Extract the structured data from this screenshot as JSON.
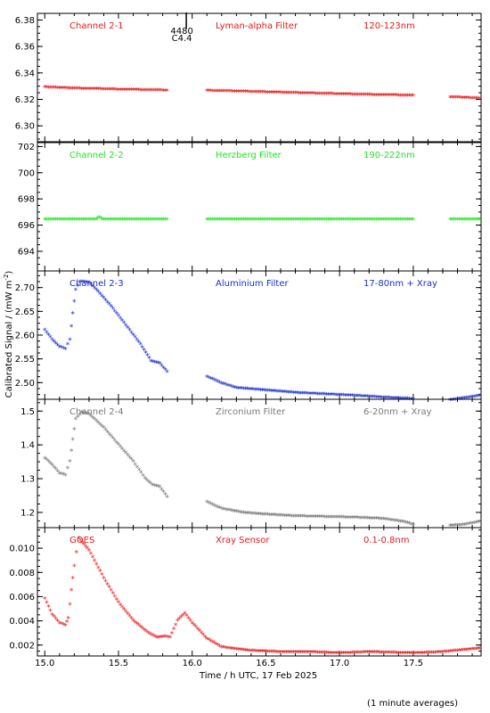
{
  "figure": {
    "ylabel": "Calibrated Signal / (mW m",
    "ylabel_sup": "-2",
    "ylabel_end": ")",
    "xlabel": "Time / h UTC, 17 Feb 2025",
    "footnote": "(1 minute averages)",
    "event_label_top": "4480",
    "event_label_bottom": "C4.4"
  },
  "chart_data": [
    {
      "type": "scatter",
      "channel": "Channel 2-1",
      "filter": "Lyman-alpha Filter",
      "band": "120-123nm",
      "color": "#e41a1c",
      "yticks": [
        "6.30",
        "6.32",
        "6.34",
        "6.36",
        "6.38"
      ],
      "ylim": [
        6.288,
        6.385
      ],
      "series": [
        [
          15.0,
          6.329
        ],
        [
          15.1,
          6.3285
        ],
        [
          15.2,
          6.328
        ],
        [
          15.3,
          6.3278
        ],
        [
          15.4,
          6.3275
        ],
        [
          15.5,
          6.3272
        ],
        [
          15.6,
          6.327
        ],
        [
          15.7,
          6.3268
        ],
        [
          15.83,
          6.3265
        ],
        null,
        [
          16.1,
          6.3263
        ],
        [
          16.3,
          6.3258
        ],
        [
          16.5,
          6.3252
        ],
        [
          16.7,
          6.3246
        ],
        [
          16.9,
          6.324
        ],
        [
          17.1,
          6.3235
        ],
        [
          17.3,
          6.323
        ],
        [
          17.5,
          6.3227
        ],
        null,
        [
          17.75,
          6.3215
        ],
        [
          17.95,
          6.3205
        ]
      ]
    },
    {
      "type": "scatter",
      "channel": "Channel 2-2",
      "filter": "Herzberg Filter",
      "band": "190-222nm",
      "color": "#22e622",
      "yticks": [
        "694",
        "696",
        "698",
        "700",
        "702"
      ],
      "ylim": [
        692.5,
        702.3
      ],
      "series": [
        [
          15.0,
          696.4
        ],
        [
          15.35,
          696.4
        ],
        [
          15.37,
          696.6
        ],
        [
          15.39,
          696.4
        ],
        [
          15.6,
          696.4
        ],
        [
          15.83,
          696.4
        ],
        null,
        [
          16.1,
          696.4
        ],
        [
          16.5,
          696.4
        ],
        [
          17.0,
          696.4
        ],
        [
          17.5,
          696.4
        ],
        null,
        [
          17.75,
          696.4
        ],
        [
          17.95,
          696.4
        ]
      ]
    },
    {
      "type": "scatter",
      "channel": "Channel 2-3",
      "filter": "Aluminium Filter",
      "band": "17-80nm + Xray",
      "color": "#1a30c8",
      "yticks": [
        "2.50",
        "2.55",
        "2.60",
        "2.65",
        "2.70"
      ],
      "ylim": [
        2.465,
        2.735
      ],
      "series": [
        [
          15.0,
          2.61
        ],
        [
          15.05,
          2.59
        ],
        [
          15.1,
          2.575
        ],
        [
          15.14,
          2.57
        ],
        [
          15.17,
          2.59
        ],
        [
          15.19,
          2.645
        ],
        [
          15.21,
          2.695
        ],
        [
          15.24,
          2.712
        ],
        [
          15.3,
          2.71
        ],
        [
          15.35,
          2.695
        ],
        [
          15.45,
          2.66
        ],
        [
          15.55,
          2.62
        ],
        [
          15.65,
          2.58
        ],
        [
          15.72,
          2.545
        ],
        [
          15.78,
          2.54
        ],
        [
          15.83,
          2.522
        ],
        null,
        [
          16.1,
          2.512
        ],
        [
          16.2,
          2.498
        ],
        [
          16.3,
          2.488
        ],
        [
          16.5,
          2.483
        ],
        [
          16.7,
          2.478
        ],
        [
          16.9,
          2.475
        ],
        [
          17.1,
          2.472
        ],
        [
          17.3,
          2.468
        ],
        [
          17.5,
          2.465
        ],
        null,
        [
          17.75,
          2.463
        ],
        [
          17.85,
          2.467
        ],
        [
          17.95,
          2.472
        ]
      ]
    },
    {
      "type": "scatter",
      "channel": "Channel 2-4",
      "filter": "Zirconium Filter",
      "band": "6-20nm + Xray",
      "color": "#7a7a7a",
      "yticks": [
        "1.2",
        "1.3",
        "1.4",
        "1.5"
      ],
      "ylim": [
        1.155,
        1.535
      ],
      "series": [
        [
          15.0,
          1.36
        ],
        [
          15.05,
          1.34
        ],
        [
          15.1,
          1.315
        ],
        [
          15.14,
          1.31
        ],
        [
          15.17,
          1.35
        ],
        [
          15.19,
          1.415
        ],
        [
          15.21,
          1.475
        ],
        [
          15.25,
          1.495
        ],
        [
          15.3,
          1.49
        ],
        [
          15.4,
          1.45
        ],
        [
          15.5,
          1.4
        ],
        [
          15.6,
          1.35
        ],
        [
          15.68,
          1.3
        ],
        [
          15.73,
          1.28
        ],
        [
          15.78,
          1.275
        ],
        [
          15.83,
          1.245
        ],
        null,
        [
          16.1,
          1.23
        ],
        [
          16.2,
          1.21
        ],
        [
          16.35,
          1.198
        ],
        [
          16.5,
          1.193
        ],
        [
          16.7,
          1.188
        ],
        [
          16.9,
          1.186
        ],
        [
          17.1,
          1.184
        ],
        [
          17.3,
          1.18
        ],
        [
          17.45,
          1.17
        ],
        [
          17.5,
          1.163
        ],
        null,
        [
          17.75,
          1.16
        ],
        [
          17.85,
          1.163
        ],
        [
          17.95,
          1.172
        ]
      ]
    },
    {
      "type": "scatter",
      "channel": "GOES",
      "filter": "Xray Sensor",
      "band": "0.1-0.8nm",
      "color": "#e41a1c",
      "yticks": [
        "0.002",
        "0.004",
        "0.006",
        "0.008",
        "0.010"
      ],
      "ylim": [
        0.0011,
        0.0117
      ],
      "series": [
        [
          15.0,
          0.0058
        ],
        [
          15.05,
          0.0045
        ],
        [
          15.1,
          0.0038
        ],
        [
          15.14,
          0.0036
        ],
        [
          15.16,
          0.0042
        ],
        [
          15.18,
          0.0065
        ],
        [
          15.2,
          0.0085
        ],
        [
          15.23,
          0.0108
        ],
        [
          15.3,
          0.0098
        ],
        [
          15.4,
          0.0075
        ],
        [
          15.5,
          0.0055
        ],
        [
          15.6,
          0.004
        ],
        [
          15.7,
          0.003
        ],
        [
          15.76,
          0.0026
        ],
        [
          15.82,
          0.0027
        ],
        [
          15.85,
          0.0026
        ],
        [
          15.9,
          0.004
        ],
        [
          15.95,
          0.0046
        ],
        [
          16.0,
          0.0038
        ],
        [
          16.1,
          0.0025
        ],
        [
          16.2,
          0.0018
        ],
        [
          16.4,
          0.0015
        ],
        [
          16.6,
          0.0014
        ],
        [
          16.8,
          0.0014
        ],
        [
          17.0,
          0.0013
        ],
        [
          17.2,
          0.0014
        ],
        [
          17.5,
          0.0013
        ],
        [
          17.7,
          0.0014
        ],
        [
          17.95,
          0.0017
        ]
      ]
    }
  ],
  "x_axis": {
    "xlim": [
      14.95,
      17.96
    ],
    "ticks": [
      15.0,
      15.5,
      16.0,
      16.5,
      17.0,
      17.5
    ],
    "tick_labels": [
      "15.0",
      "15.5",
      "16.0",
      "16.5",
      "17.0",
      "17.5"
    ],
    "event_time": 15.96
  }
}
